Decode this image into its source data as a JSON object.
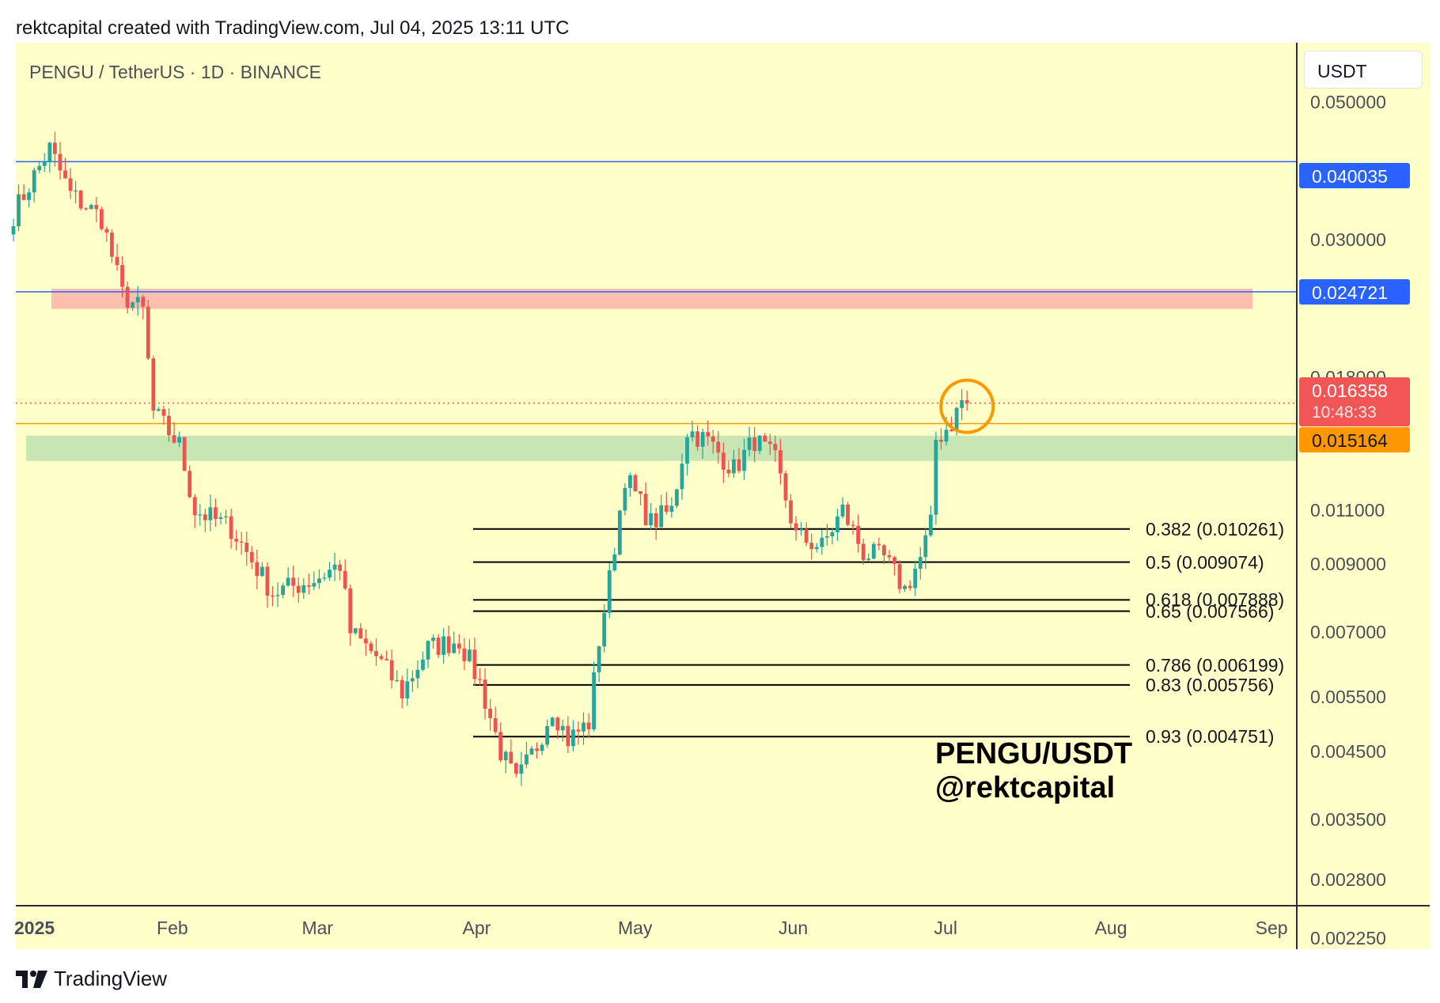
{
  "header": {
    "text": "rektcapital created with TradingView.com, Jul 04, 2025 13:11 UTC"
  },
  "footer": {
    "brand": "TradingView",
    "logo_icon": "tradingview-logo-icon"
  },
  "colors": {
    "background": "#ffffc9",
    "up_candle": "#26a69a",
    "down_candle": "#ef5350",
    "resistance_zone": "#fbbfae",
    "support_zone": "#c8e6b4",
    "horizontal_blue": "#2962ff",
    "current_price_line": "#ff9800",
    "highlight_circle": "#ff9800"
  },
  "chart_data": {
    "type": "candlestick",
    "title": "PENGU / TetherUS · 1D · BINANCE",
    "currency": "USDT",
    "y_scale": "log",
    "ylim": [
      0.00195,
      0.0615
    ],
    "y_ticks": [
      "0.050000",
      "0.030000",
      "0.018000",
      "0.011000",
      "0.009000",
      "0.007000",
      "0.005500",
      "0.004500",
      "0.003500",
      "0.002800",
      "0.002250"
    ],
    "x_ticks": [
      "2025",
      "Feb",
      "Mar",
      "Apr",
      "May",
      "Jun",
      "Jul",
      "Aug",
      "Sep"
    ],
    "price_tags": {
      "level_1": "0.040035",
      "level_2": "0.024721",
      "last_price": "0.016358",
      "countdown": "10:48:33",
      "level_3": "0.015164"
    },
    "horizontal_lines": [
      {
        "price": 0.040035,
        "color": "#2962ff"
      },
      {
        "price": 0.024721,
        "color": "#2962ff"
      },
      {
        "price": 0.015164,
        "color": "#ff9800"
      }
    ],
    "zones": [
      {
        "name": "resistance",
        "from": 0.0232,
        "to": 0.025,
        "color": "#fbbfae"
      },
      {
        "name": "support",
        "from": 0.0132,
        "to": 0.0145,
        "color": "#c8e6b4"
      }
    ],
    "fib_levels": [
      {
        "label": "0.382 (0.010261)",
        "price": 0.010261
      },
      {
        "label": "0.5 (0.009074)",
        "price": 0.009074
      },
      {
        "label": "0.618 (0.007888)",
        "price": 0.007888
      },
      {
        "label": "0.65 (0.007566)",
        "price": 0.007566
      },
      {
        "label": "0.786 (0.006199)",
        "price": 0.006199
      },
      {
        "label": "0.83 (0.005756)",
        "price": 0.005756
      },
      {
        "label": "0.93 (0.004751)",
        "price": 0.004751
      }
    ],
    "annotation": {
      "line1": "PENGU/USDT",
      "line2": "@rektcapital"
    },
    "close_keypoints": [
      {
        "date": "2025-01-01",
        "close": 0.033
      },
      {
        "date": "2025-01-05",
        "close": 0.038
      },
      {
        "date": "2025-01-08",
        "close": 0.042
      },
      {
        "date": "2025-01-12",
        "close": 0.0355
      },
      {
        "date": "2025-01-18",
        "close": 0.0325
      },
      {
        "date": "2025-01-22",
        "close": 0.0245
      },
      {
        "date": "2025-01-26",
        "close": 0.023
      },
      {
        "date": "2025-01-28",
        "close": 0.0158
      },
      {
        "date": "2025-02-02",
        "close": 0.014
      },
      {
        "date": "2025-02-05",
        "close": 0.011
      },
      {
        "date": "2025-02-12",
        "close": 0.0103
      },
      {
        "date": "2025-02-20",
        "close": 0.0081
      },
      {
        "date": "2025-02-28",
        "close": 0.0085
      },
      {
        "date": "2025-03-05",
        "close": 0.009
      },
      {
        "date": "2025-03-07",
        "close": 0.007
      },
      {
        "date": "2025-03-12",
        "close": 0.0064
      },
      {
        "date": "2025-03-17",
        "close": 0.0056
      },
      {
        "date": "2025-03-22",
        "close": 0.0066
      },
      {
        "date": "2025-03-28",
        "close": 0.0068
      },
      {
        "date": "2025-04-01",
        "close": 0.0058
      },
      {
        "date": "2025-04-05",
        "close": 0.0045
      },
      {
        "date": "2025-04-08",
        "close": 0.004
      },
      {
        "date": "2025-04-12",
        "close": 0.0046
      },
      {
        "date": "2025-04-15",
        "close": 0.0053
      },
      {
        "date": "2025-04-18",
        "close": 0.0047
      },
      {
        "date": "2025-04-22",
        "close": 0.005
      },
      {
        "date": "2025-04-24",
        "close": 0.0068
      },
      {
        "date": "2025-04-26",
        "close": 0.0085
      },
      {
        "date": "2025-04-29",
        "close": 0.0125
      },
      {
        "date": "2025-05-04",
        "close": 0.0105
      },
      {
        "date": "2025-05-08",
        "close": 0.011
      },
      {
        "date": "2025-05-11",
        "close": 0.0148
      },
      {
        "date": "2025-05-15",
        "close": 0.0142
      },
      {
        "date": "2025-05-20",
        "close": 0.0128
      },
      {
        "date": "2025-05-24",
        "close": 0.0143
      },
      {
        "date": "2025-05-28",
        "close": 0.0132
      },
      {
        "date": "2025-06-01",
        "close": 0.01
      },
      {
        "date": "2025-06-06",
        "close": 0.0096
      },
      {
        "date": "2025-06-10",
        "close": 0.011
      },
      {
        "date": "2025-06-14",
        "close": 0.0094
      },
      {
        "date": "2025-06-18",
        "close": 0.0092
      },
      {
        "date": "2025-06-22",
        "close": 0.0082
      },
      {
        "date": "2025-06-25",
        "close": 0.0092
      },
      {
        "date": "2025-06-27",
        "close": 0.0104
      },
      {
        "date": "2025-06-28",
        "close": 0.0143
      },
      {
        "date": "2025-07-01",
        "close": 0.0152
      },
      {
        "date": "2025-07-03",
        "close": 0.0165
      },
      {
        "date": "2025-07-04",
        "close": 0.016358
      }
    ]
  }
}
